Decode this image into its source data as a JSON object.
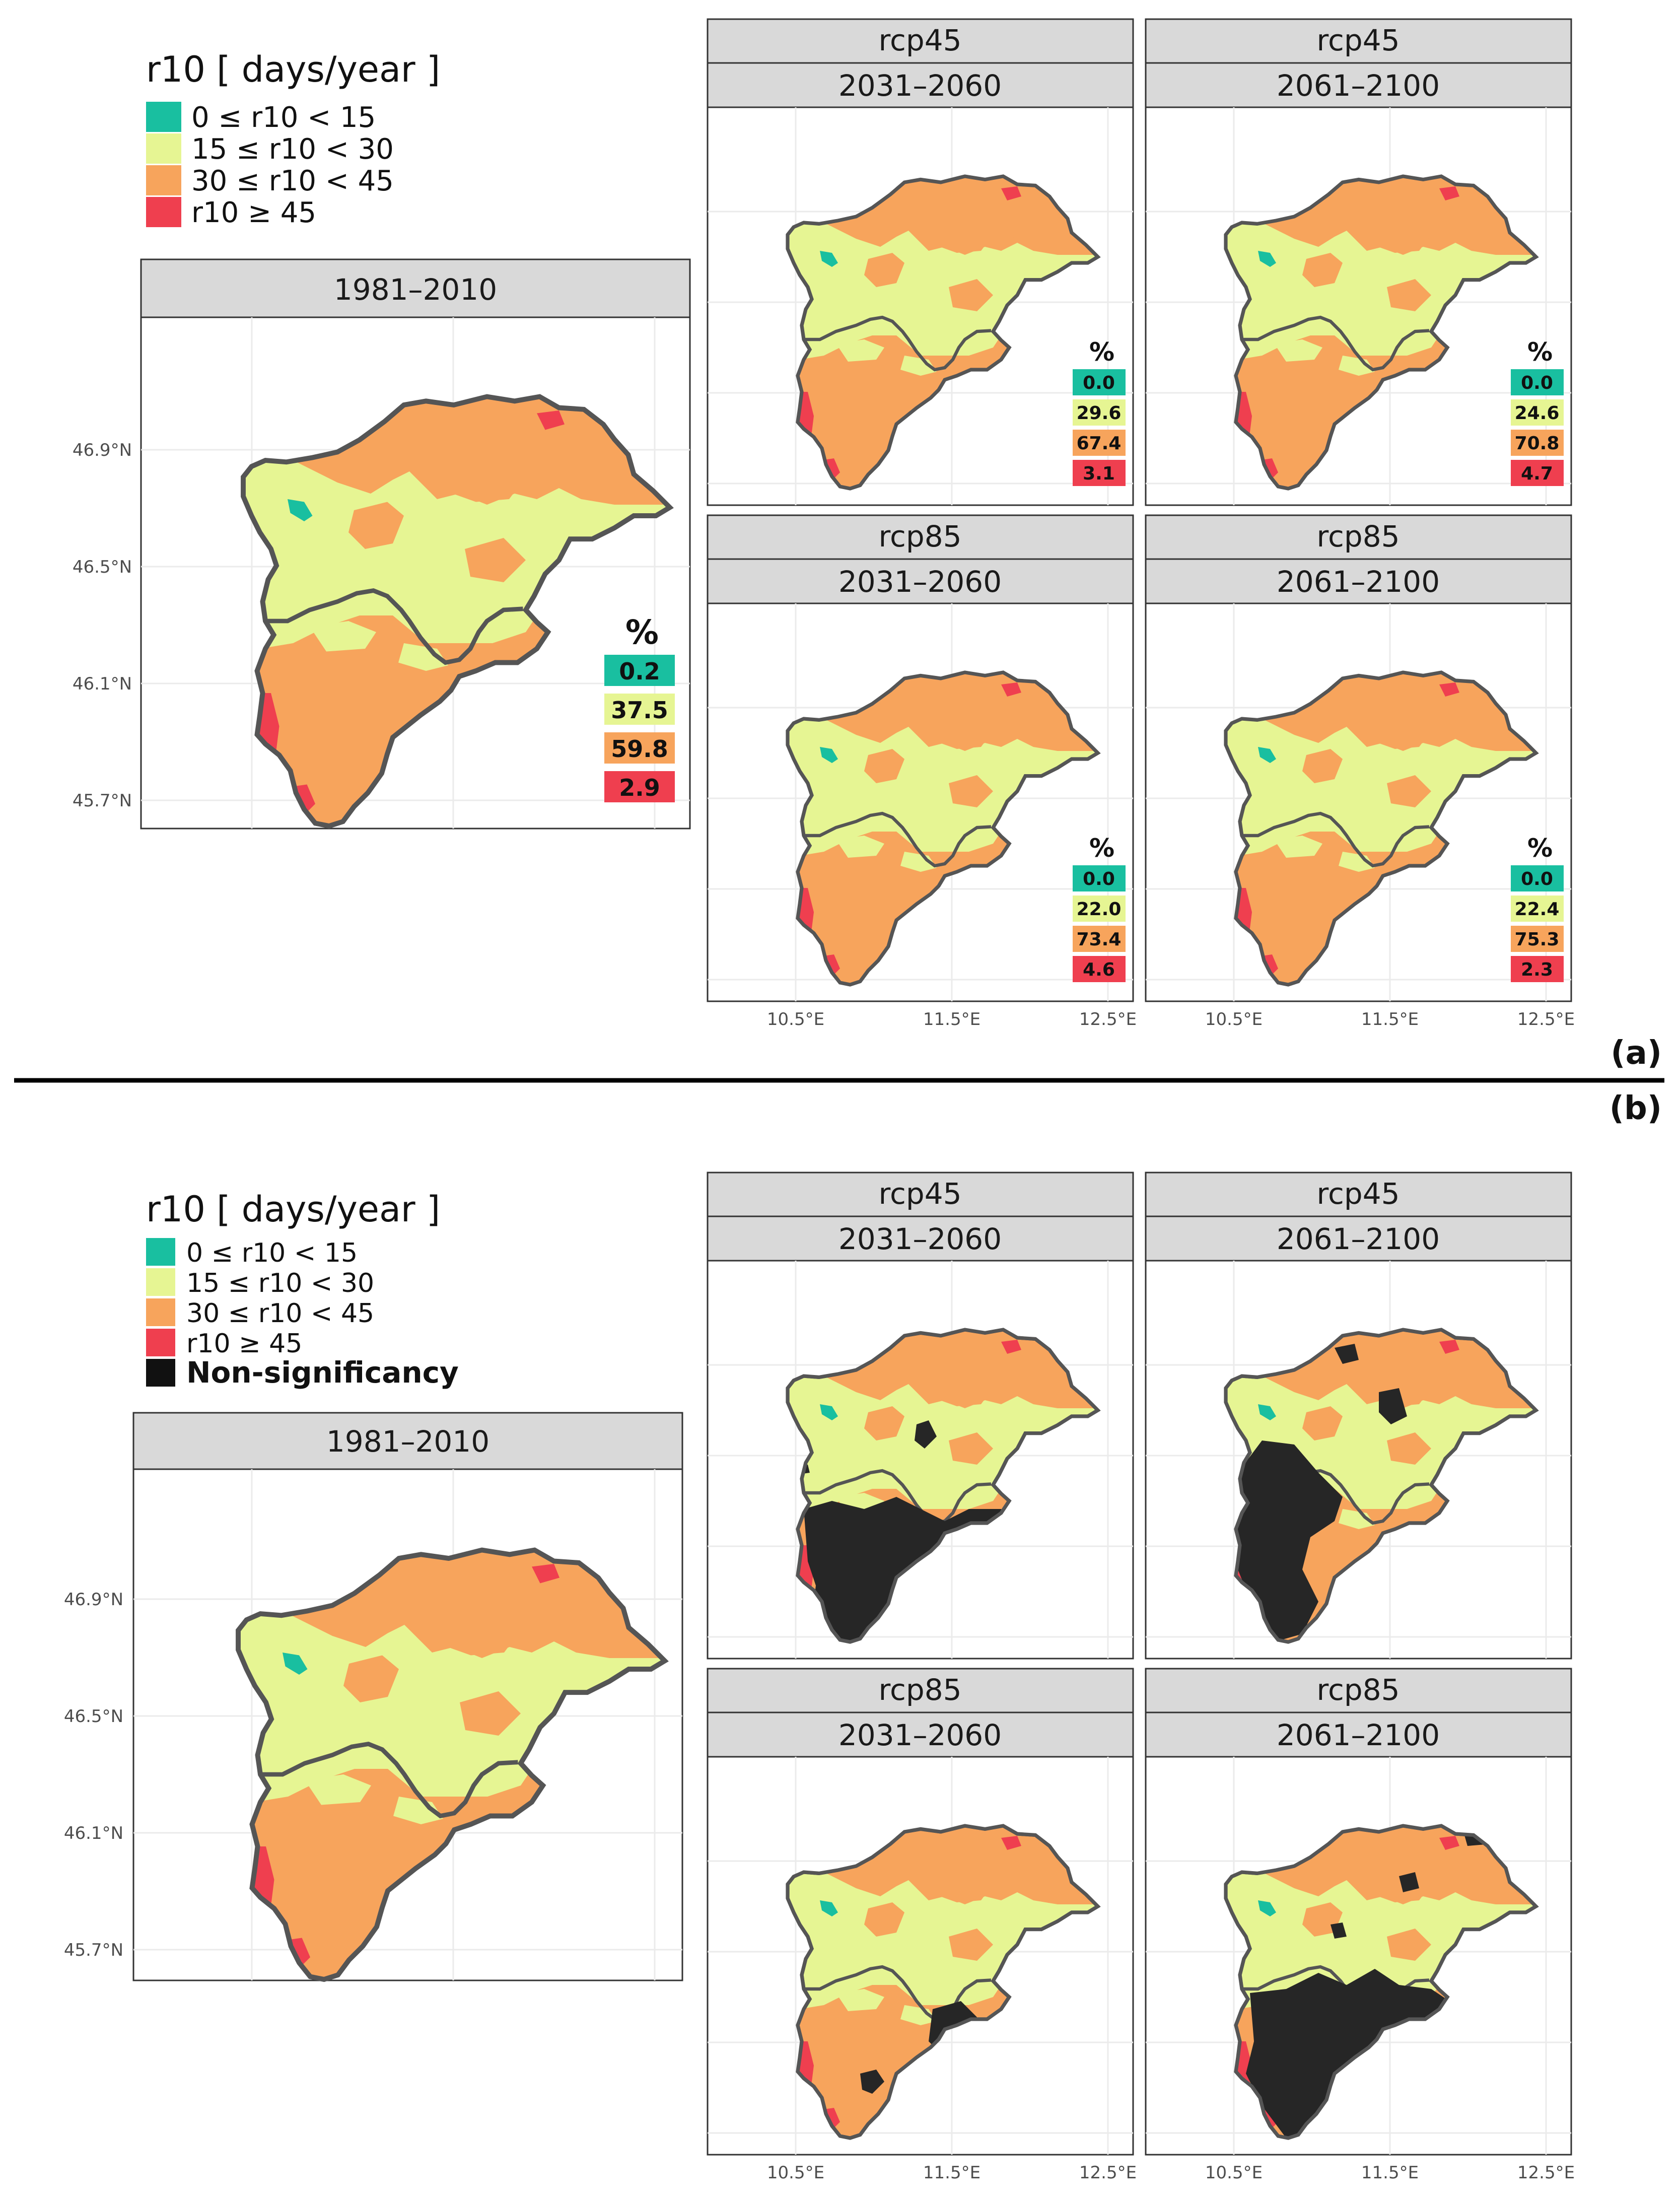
{
  "legend": {
    "title": "r10 [ days/year ]",
    "classes": [
      {
        "label": "0 ≤ r10 < 15",
        "color": "#19bfa0"
      },
      {
        "label": "15 ≤ r10 < 30",
        "color": "#e6f593"
      },
      {
        "label": "30 ≤ r10 < 45",
        "color": "#f7a45c"
      },
      {
        "label": "r10 ≥ 45",
        "color": "#ef3f4f"
      }
    ],
    "nonsig": {
      "label": "Non-significancy",
      "color": "#1a1a1a"
    }
  },
  "axes": {
    "lat_labels": [
      "46.9°N",
      "46.5°N",
      "46.1°N",
      "45.7°N"
    ],
    "lon_labels": [
      "10.5°E",
      "11.5°E",
      "12.5°E"
    ]
  },
  "sections": [
    {
      "label": "(a)",
      "panels": [
        {
          "scenario": "",
          "period": "1981–2010",
          "percent_title": "%",
          "percentages": [
            "0.2",
            "37.5",
            "59.8",
            "2.9"
          ]
        },
        {
          "scenario": "rcp45",
          "period": "2031–2060",
          "percent_title": "%",
          "percentages": [
            "0.0",
            "29.6",
            "67.4",
            "3.1"
          ]
        },
        {
          "scenario": "rcp45",
          "period": "2061–2100",
          "percent_title": "%",
          "percentages": [
            "0.0",
            "24.6",
            "70.8",
            "4.7"
          ]
        },
        {
          "scenario": "rcp85",
          "period": "2031–2060",
          "percent_title": "%",
          "percentages": [
            "0.0",
            "22.0",
            "73.4",
            "4.6"
          ]
        },
        {
          "scenario": "rcp85",
          "period": "2061–2100",
          "percent_title": "%",
          "percentages": [
            "0.0",
            "22.4",
            "75.3",
            "2.3"
          ]
        }
      ]
    },
    {
      "label": "(b)",
      "panels": [
        {
          "scenario": "",
          "period": "1981–2010"
        },
        {
          "scenario": "rcp45",
          "period": "2031–2060"
        },
        {
          "scenario": "rcp45",
          "period": "2061–2100"
        },
        {
          "scenario": "rcp85",
          "period": "2031–2060"
        },
        {
          "scenario": "rcp85",
          "period": "2061–2100"
        }
      ]
    }
  ]
}
